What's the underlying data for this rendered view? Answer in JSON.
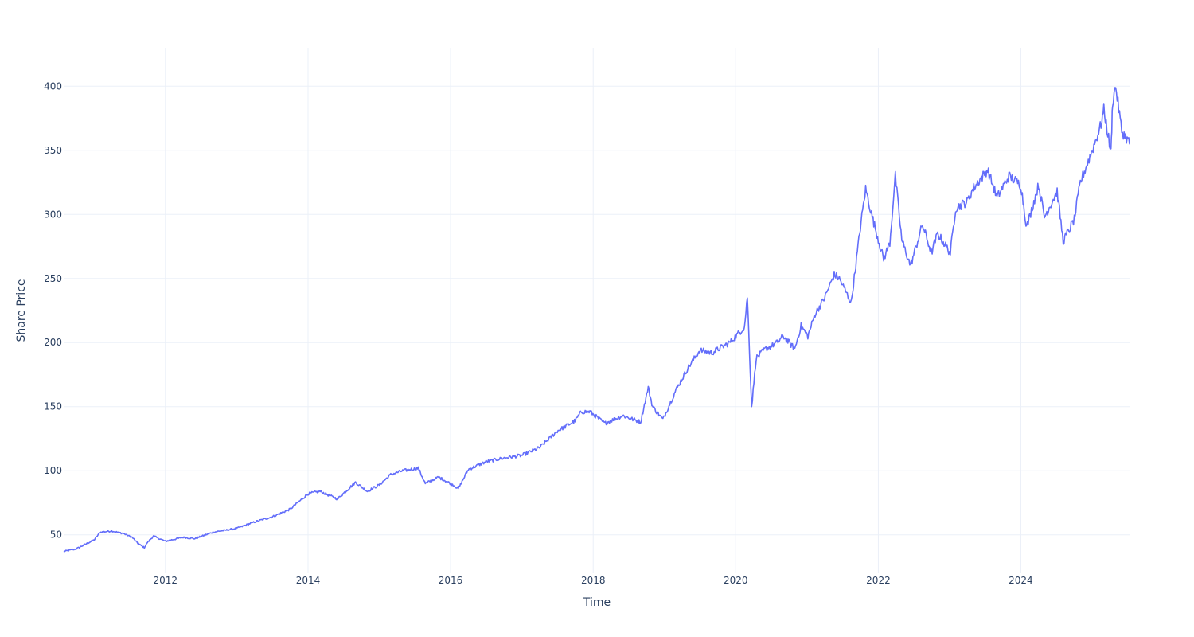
{
  "chart_data": {
    "type": "line",
    "title": "",
    "xlabel": "Time",
    "ylabel": "Share Price",
    "xlim": [
      "2010-07-29",
      "2025-07-15"
    ],
    "ylim": [
      20,
      430
    ],
    "x_ticks": [
      "2012",
      "2014",
      "2016",
      "2018",
      "2020",
      "2022",
      "2024"
    ],
    "y_ticks": [
      50,
      100,
      150,
      200,
      250,
      300,
      350,
      400
    ],
    "grid": true,
    "legend": "none",
    "series": [
      {
        "color": "#636efa",
        "x": [
          "2010-07-29",
          "2010-10-01",
          "2011-01-01",
          "2011-02-01",
          "2011-04-01",
          "2011-06-01",
          "2011-07-15",
          "2011-08-15",
          "2011-09-15",
          "2011-10-01",
          "2011-11-01",
          "2012-01-01",
          "2012-04-01",
          "2012-06-01",
          "2012-09-01",
          "2013-01-01",
          "2013-04-01",
          "2013-07-01",
          "2013-10-01",
          "2014-01-01",
          "2014-03-01",
          "2014-06-01",
          "2014-09-01",
          "2014-11-01",
          "2015-01-01",
          "2015-03-01",
          "2015-05-01",
          "2015-07-20",
          "2015-08-25",
          "2015-11-01",
          "2016-01-15",
          "2016-02-10",
          "2016-04-01",
          "2016-07-01",
          "2016-10-01",
          "2017-01-01",
          "2017-04-01",
          "2017-07-01",
          "2017-10-01",
          "2017-11-01",
          "2017-12-15",
          "2018-03-01",
          "2018-06-01",
          "2018-09-01",
          "2018-10-10",
          "2018-11-01",
          "2018-12-24",
          "2019-03-01",
          "2019-05-01",
          "2019-07-01",
          "2019-09-01",
          "2019-12-01",
          "2020-02-15",
          "2020-03-01",
          "2020-03-23",
          "2020-04-15",
          "2020-06-01",
          "2020-08-01",
          "2020-09-01",
          "2020-10-30",
          "2020-12-01",
          "2021-01-05",
          "2021-02-10",
          "2021-04-01",
          "2021-05-20",
          "2021-06-15",
          "2021-08-15",
          "2021-10-01",
          "2021-10-28",
          "2021-12-01",
          "2022-01-28",
          "2022-03-01",
          "2022-03-29",
          "2022-05-01",
          "2022-06-15",
          "2022-08-15",
          "2022-09-30",
          "2022-11-01",
          "2023-01-05",
          "2023-02-01",
          "2023-04-01",
          "2023-05-01",
          "2023-07-15",
          "2023-09-01",
          "2023-11-01",
          "2024-01-01",
          "2024-01-31",
          "2024-04-01",
          "2024-05-01",
          "2024-07-05",
          "2024-08-05",
          "2024-10-01",
          "2024-11-01",
          "2025-01-01",
          "2025-02-15",
          "2025-03-01",
          "2025-04-07",
          "2025-04-15",
          "2025-05-01",
          "2025-06-01",
          "2025-07-15"
        ],
        "y": [
          37,
          39,
          46,
          52,
          53,
          51,
          48,
          43,
          40,
          44,
          49,
          45,
          48,
          47,
          52,
          55,
          60,
          64,
          70,
          82,
          84,
          78,
          91,
          84,
          89,
          97,
          100,
          102,
          90,
          95,
          89,
          86,
          101,
          107,
          110,
          112,
          118,
          131,
          139,
          146,
          146,
          137,
          143,
          138,
          165,
          150,
          140,
          163,
          180,
          194,
          192,
          200,
          212,
          236,
          150,
          188,
          195,
          200,
          205,
          195,
          213,
          205,
          222,
          235,
          253,
          250,
          231,
          290,
          320,
          298,
          265,
          278,
          330,
          280,
          260,
          292,
          270,
          285,
          270,
          305,
          310,
          320,
          335,
          313,
          330,
          323,
          290,
          323,
          298,
          318,
          279,
          296,
          325,
          350,
          370,
          382,
          348,
          388,
          400,
          365,
          355
        ]
      }
    ]
  }
}
